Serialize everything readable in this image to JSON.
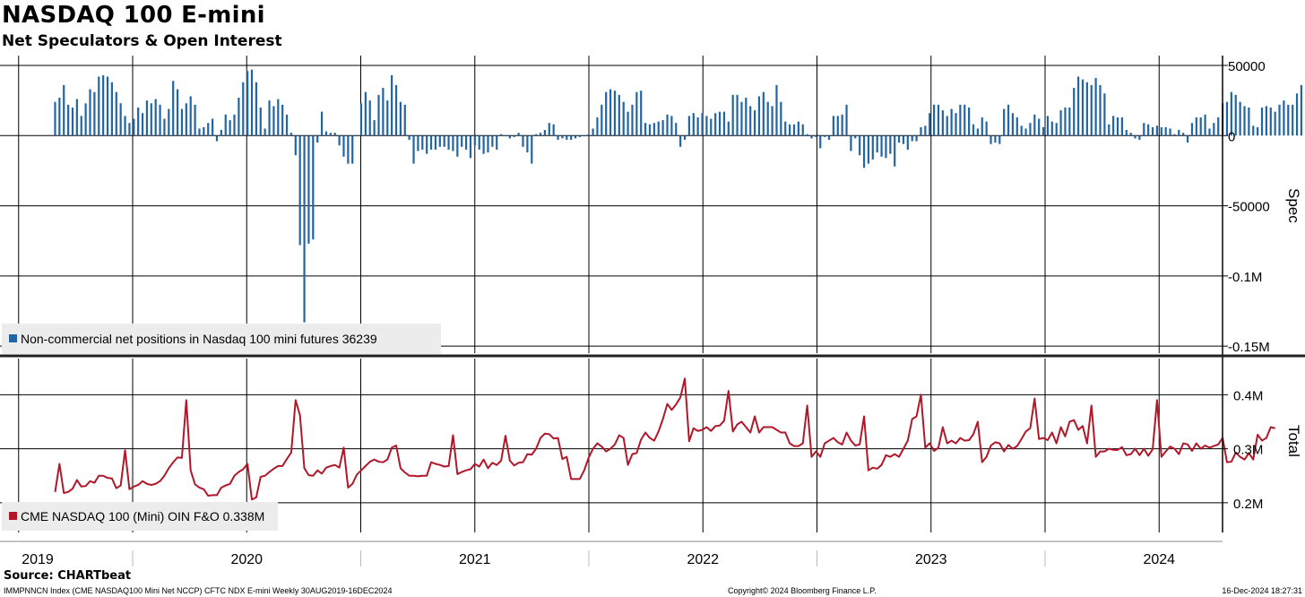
{
  "header": {
    "title": "NASDAQ 100 E-mini",
    "subtitle": "Net Speculators & Open Interest"
  },
  "footer": {
    "source": "Source: CHARTbeat",
    "index_info": "IMMPNNCN Index (CME NASDAQ100 Mini Net NCCP) CFTC NDX E-mini  Weekly 30AUG2019-16DEC2024",
    "copyright": "Copyright© 2024 Bloomberg Finance L.P.",
    "timestamp": "16-Dec-2024 18:27:31"
  },
  "colors": {
    "spec_bar": "#2265a3",
    "total_line": "#b0182a",
    "grid": "#000000",
    "legend_bg": "#ececec"
  },
  "chart_data": [
    {
      "type": "bar",
      "panel": "top",
      "axis_label": "Spec",
      "legend": "Non-commercial net positions in Nasdaq 100 mini futures 36239",
      "ylim": [
        -155000,
        57000
      ],
      "yticks": [
        50000,
        0,
        -50000,
        -100000,
        -150000
      ],
      "ytick_labels": [
        "50000",
        "0",
        "-50000",
        "-0.1M",
        "-0.15M"
      ],
      "x_start": 2019.66,
      "x_step_years": 0.01917,
      "values": [
        24000,
        27000,
        36000,
        22000,
        20000,
        26000,
        14000,
        23000,
        33000,
        31000,
        42000,
        43000,
        42000,
        38000,
        31000,
        23000,
        14000,
        9000,
        12000,
        20000,
        16000,
        25000,
        23000,
        26000,
        22000,
        12000,
        19000,
        39000,
        33000,
        19000,
        23000,
        28000,
        22000,
        5000,
        6000,
        9000,
        12000,
        -4000,
        4000,
        15000,
        11000,
        15000,
        27000,
        38000,
        46000,
        47000,
        38000,
        20000,
        5000,
        25000,
        21000,
        26000,
        22000,
        15000,
        2000,
        -14000,
        -78000,
        -133000,
        -77000,
        -74000,
        -5000,
        17000,
        3000,
        2000,
        2000,
        -7000,
        -15000,
        -20000,
        -20000,
        0,
        23000,
        31000,
        25000,
        11000,
        29000,
        34000,
        25000,
        43000,
        36000,
        24000,
        22000,
        -3000,
        -20000,
        -11000,
        -10000,
        -13000,
        -10000,
        -10000,
        -8000,
        -8000,
        -10000,
        -11000,
        -15000,
        -8000,
        -10000,
        -16000,
        -7000,
        -10000,
        -13000,
        -12000,
        -8000,
        -10000,
        1000,
        0,
        -2000,
        -1000,
        2000,
        -8000,
        -12000,
        -20000,
        1000,
        2000,
        4000,
        9000,
        8000,
        -3000,
        -2000,
        -3000,
        -3000,
        -2000,
        -1000,
        0,
        1000,
        5000,
        13000,
        22000,
        31000,
        33000,
        32000,
        29000,
        24000,
        17000,
        22000,
        31000,
        32000,
        9000,
        8000,
        9000,
        10000,
        11000,
        15000,
        14000,
        9000,
        -8000,
        -3000,
        14000,
        16000,
        13000,
        16000,
        14000,
        12000,
        16000,
        17000,
        17000,
        10000,
        29000,
        29000,
        24000,
        27000,
        21000,
        18000,
        28000,
        31000,
        24000,
        21000,
        36000,
        24000,
        10000,
        8000,
        8000,
        10000,
        8000,
        1000,
        -2000,
        -1000,
        -9000,
        -1000,
        -3000,
        14000,
        14000,
        15000,
        22000,
        -11000,
        -2000,
        -14000,
        -23000,
        -20000,
        -17000,
        -12000,
        -15000,
        -16000,
        -13000,
        -22000,
        -5000,
        -6000,
        -10000,
        -4000,
        -4000,
        6000,
        7000,
        16000,
        22000,
        22000,
        18000,
        14000,
        19000,
        16000,
        22000,
        22000,
        20000,
        8000,
        5000,
        13000,
        10000,
        -6000,
        -5000,
        -6000,
        19000,
        22000,
        16000,
        13000,
        7000,
        5000,
        9000,
        15000,
        12000,
        6000,
        14000,
        10000,
        9000,
        18000,
        20000,
        20000,
        34000,
        42000,
        40000,
        38000,
        36000,
        41000,
        36000,
        30000,
        8000,
        14000,
        13000,
        13000,
        4000,
        2000,
        -2000,
        -3000,
        9000,
        8000,
        6000,
        7000,
        6000,
        6000,
        5000,
        1000,
        4000,
        2000,
        -5000,
        9000,
        13000,
        13000,
        15000,
        5000,
        9000,
        13000,
        23000,
        24000,
        31000,
        29000,
        24000,
        21000,
        20000,
        7000,
        6000,
        20000,
        21000,
        20000,
        17000,
        22000,
        25000,
        22000,
        22000,
        30000,
        36000
      ]
    },
    {
      "type": "line",
      "panel": "bottom",
      "axis_label": "Total",
      "legend": "CME NASDAQ 100 (Mini) OIN F&O 0.338M",
      "ylim": [
        0.145,
        0.467
      ],
      "yticks": [
        0.4,
        0.3,
        0.2
      ],
      "ytick_labels": [
        "0.4M",
        "0.3M",
        "0.2M"
      ],
      "x_start": 2019.66,
      "x_step_years": 0.01917,
      "values": [
        0.22,
        0.272,
        0.218,
        0.22,
        0.226,
        0.242,
        0.23,
        0.231,
        0.24,
        0.237,
        0.25,
        0.25,
        0.246,
        0.245,
        0.227,
        0.232,
        0.297,
        0.225,
        0.23,
        0.233,
        0.24,
        0.235,
        0.233,
        0.235,
        0.24,
        0.25,
        0.264,
        0.275,
        0.284,
        0.283,
        0.39,
        0.26,
        0.234,
        0.228,
        0.225,
        0.213,
        0.214,
        0.214,
        0.228,
        0.232,
        0.235,
        0.25,
        0.257,
        0.262,
        0.272,
        0.206,
        0.21,
        0.248,
        0.25,
        0.257,
        0.263,
        0.268,
        0.268,
        0.281,
        0.293,
        0.39,
        0.362,
        0.264,
        0.251,
        0.25,
        0.26,
        0.254,
        0.265,
        0.268,
        0.27,
        0.265,
        0.302,
        0.228,
        0.235,
        0.252,
        0.26,
        0.268,
        0.276,
        0.28,
        0.276,
        0.275,
        0.28,
        0.302,
        0.306,
        0.264,
        0.256,
        0.25,
        0.25,
        0.249,
        0.25,
        0.25,
        0.275,
        0.272,
        0.27,
        0.267,
        0.268,
        0.325,
        0.253,
        0.257,
        0.26,
        0.262,
        0.272,
        0.267,
        0.28,
        0.264,
        0.274,
        0.27,
        0.278,
        0.324,
        0.278,
        0.269,
        0.274,
        0.275,
        0.29,
        0.289,
        0.3,
        0.32,
        0.328,
        0.327,
        0.319,
        0.32,
        0.281,
        0.285,
        0.244,
        0.244,
        0.244,
        0.26,
        0.283,
        0.3,
        0.31,
        0.304,
        0.295,
        0.3,
        0.308,
        0.325,
        0.32,
        0.27,
        0.29,
        0.292,
        0.317,
        0.33,
        0.32,
        0.315,
        0.332,
        0.355,
        0.383,
        0.372,
        0.382,
        0.395,
        0.43,
        0.314,
        0.338,
        0.333,
        0.335,
        0.34,
        0.333,
        0.342,
        0.343,
        0.352,
        0.407,
        0.332,
        0.345,
        0.35,
        0.34,
        0.33,
        0.36,
        0.33,
        0.34,
        0.34,
        0.34,
        0.335,
        0.33,
        0.33,
        0.31,
        0.305,
        0.305,
        0.31,
        0.38,
        0.285,
        0.295,
        0.285,
        0.31,
        0.315,
        0.32,
        0.312,
        0.308,
        0.33,
        0.315,
        0.306,
        0.308,
        0.36,
        0.26,
        0.265,
        0.263,
        0.27,
        0.288,
        0.285,
        0.29,
        0.285,
        0.3,
        0.315,
        0.355,
        0.36,
        0.4,
        0.302,
        0.31,
        0.296,
        0.302,
        0.34,
        0.31,
        0.315,
        0.31,
        0.32,
        0.315,
        0.316,
        0.327,
        0.35,
        0.275,
        0.285,
        0.306,
        0.312,
        0.31,
        0.295,
        0.307,
        0.3,
        0.305,
        0.318,
        0.332,
        0.338,
        0.393,
        0.318,
        0.32,
        0.316,
        0.33,
        0.31,
        0.34,
        0.323,
        0.35,
        0.353,
        0.335,
        0.342,
        0.31,
        0.38,
        0.285,
        0.295,
        0.295,
        0.3,
        0.298,
        0.298,
        0.303,
        0.288,
        0.29,
        0.3,
        0.288,
        0.3,
        0.287,
        0.299,
        0.39,
        0.285,
        0.295,
        0.304,
        0.3,
        0.29,
        0.31,
        0.308,
        0.296,
        0.31,
        0.3,
        0.306,
        0.302,
        0.305,
        0.308,
        0.32,
        0.275,
        0.276,
        0.293,
        0.285,
        0.28,
        0.292,
        0.28,
        0.326,
        0.315,
        0.32,
        0.34,
        0.338
      ]
    }
  ],
  "x_axis": {
    "years": [
      "2019",
      "2020",
      "2021",
      "2022",
      "2023",
      "2024"
    ]
  }
}
